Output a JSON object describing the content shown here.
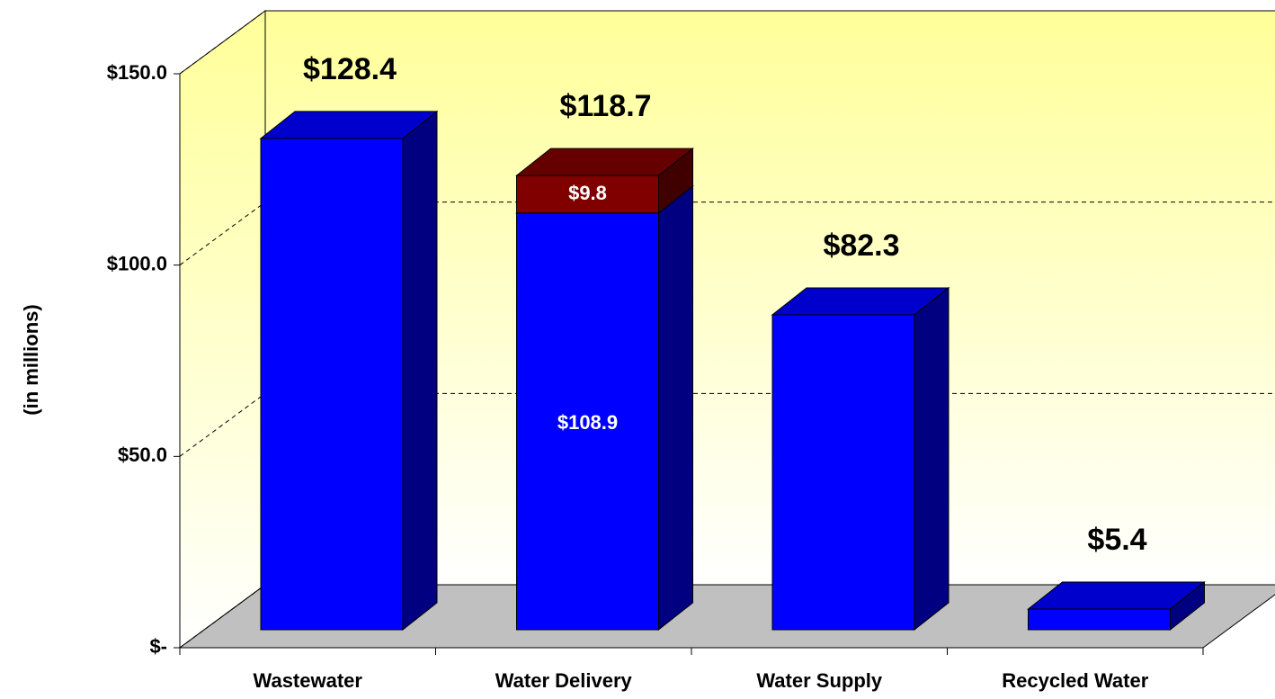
{
  "chart_data": {
    "type": "bar3d_stacked",
    "y_label": "(in millions)",
    "categories": [
      "Wastewater",
      "Water Delivery",
      "Water Supply",
      "Recycled Water"
    ],
    "series": [
      {
        "color": "#0000ff",
        "values": [
          128.4,
          108.9,
          82.3,
          5.4
        ],
        "value_labels": [
          null,
          "$108.9",
          null,
          null
        ]
      },
      {
        "color": "#800000",
        "values": [
          null,
          9.8,
          null,
          null
        ],
        "value_labels": [
          null,
          "$9.8",
          null,
          null
        ]
      }
    ],
    "totals": {
      "values": [
        128.4,
        118.7,
        82.3,
        5.4
      ],
      "value_labels": [
        "$128.4",
        "$118.7",
        "$82.3",
        "$5.4"
      ]
    },
    "ylim": [
      0,
      150
    ],
    "yticks": [
      {
        "value": 0,
        "label": "$-"
      },
      {
        "value": 50,
        "label": "$50.0"
      },
      {
        "value": 100,
        "label": "$100.0"
      },
      {
        "value": 150,
        "label": "$150.0"
      }
    ],
    "grid": true
  }
}
